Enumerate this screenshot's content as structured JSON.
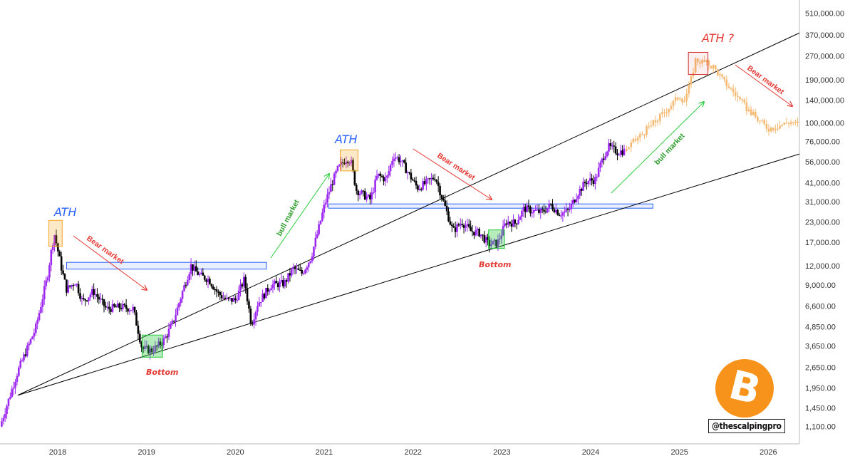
{
  "chart_data": {
    "type": "candlestick",
    "y_scale": "log",
    "ylim": [
      850,
      620000
    ],
    "y_ticks": [
      "510,000.00",
      "370,000.00",
      "270,000.00",
      "190,000.00",
      "140,000.00",
      "100,000.00",
      "76,000.00",
      "56,000.00",
      "41,000.00",
      "31,000.00",
      "23,000.00",
      "17,000.00",
      "12,000.00",
      "9,000.00",
      "6,600.00",
      "4,850.00",
      "3,650.00",
      "2,650.00",
      "1,950.00",
      "1,450.00",
      "1,100.00"
    ],
    "x_ticks": [
      "2018",
      "2019",
      "2020",
      "2021",
      "2022",
      "2023",
      "2024",
      "2025",
      "2026"
    ],
    "x_range": [
      2017.35,
      2026.35
    ],
    "colors": {
      "up": "#9c27f0",
      "down": "#000000",
      "projection": "#f5b971",
      "channel": "#000000",
      "zone": "#2962ff",
      "bottom_box": "#27c93f",
      "ath_box": "#f5a623",
      "ath_q_box": "#d32f2f"
    },
    "price_path": [
      [
        2017.35,
        1100
      ],
      [
        2017.55,
        2500
      ],
      [
        2017.75,
        4700
      ],
      [
        2017.88,
        10000
      ],
      [
        2017.96,
        19500
      ],
      [
        2018.05,
        11000
      ],
      [
        2018.1,
        8400
      ],
      [
        2018.2,
        9500
      ],
      [
        2018.28,
        7000
      ],
      [
        2018.4,
        8200
      ],
      [
        2018.55,
        6300
      ],
      [
        2018.7,
        6500
      ],
      [
        2018.85,
        6300
      ],
      [
        2018.95,
        3500
      ],
      [
        2019.05,
        3400
      ],
      [
        2019.12,
        3600
      ],
      [
        2019.2,
        4000
      ],
      [
        2019.3,
        5200
      ],
      [
        2019.4,
        8000
      ],
      [
        2019.5,
        12000
      ],
      [
        2019.55,
        11000
      ],
      [
        2019.62,
        10200
      ],
      [
        2019.7,
        9800
      ],
      [
        2019.8,
        8000
      ],
      [
        2019.9,
        7200
      ],
      [
        2020.0,
        7200
      ],
      [
        2020.1,
        9800
      ],
      [
        2020.18,
        5000
      ],
      [
        2020.25,
        6800
      ],
      [
        2020.4,
        9000
      ],
      [
        2020.55,
        9200
      ],
      [
        2020.65,
        11500
      ],
      [
        2020.75,
        10700
      ],
      [
        2020.85,
        13500
      ],
      [
        2020.92,
        19000
      ],
      [
        2021.0,
        29000
      ],
      [
        2021.08,
        40000
      ],
      [
        2021.15,
        50000
      ],
      [
        2021.25,
        59000
      ],
      [
        2021.3,
        57000
      ],
      [
        2021.36,
        37000
      ],
      [
        2021.45,
        34000
      ],
      [
        2021.52,
        32000
      ],
      [
        2021.6,
        46000
      ],
      [
        2021.7,
        43000
      ],
      [
        2021.78,
        62000
      ],
      [
        2021.86,
        57000
      ],
      [
        2021.95,
        47000
      ],
      [
        2022.05,
        38000
      ],
      [
        2022.15,
        41000
      ],
      [
        2022.25,
        45000
      ],
      [
        2022.35,
        30000
      ],
      [
        2022.45,
        20000
      ],
      [
        2022.55,
        23000
      ],
      [
        2022.65,
        20000
      ],
      [
        2022.75,
        19500
      ],
      [
        2022.85,
        16500
      ],
      [
        2022.95,
        16800
      ],
      [
        2023.05,
        23000
      ],
      [
        2023.15,
        22500
      ],
      [
        2023.25,
        28000
      ],
      [
        2023.35,
        27000
      ],
      [
        2023.45,
        26500
      ],
      [
        2023.55,
        29500
      ],
      [
        2023.65,
        26000
      ],
      [
        2023.75,
        27000
      ],
      [
        2023.85,
        35000
      ],
      [
        2023.95,
        42000
      ],
      [
        2024.05,
        43000
      ],
      [
        2024.15,
        62000
      ],
      [
        2024.2,
        70000
      ],
      [
        2024.3,
        65000
      ],
      [
        2024.38,
        66000
      ]
    ],
    "projection_path": [
      [
        2024.38,
        66000
      ],
      [
        2024.55,
        82000
      ],
      [
        2024.75,
        105000
      ],
      [
        2024.9,
        130000
      ],
      [
        2025.0,
        150000
      ],
      [
        2025.05,
        138000
      ],
      [
        2025.12,
        180000
      ],
      [
        2025.18,
        255000
      ],
      [
        2025.28,
        245000
      ],
      [
        2025.38,
        230000
      ],
      [
        2025.5,
        185000
      ],
      [
        2025.62,
        155000
      ],
      [
        2025.75,
        125000
      ],
      [
        2025.88,
        105000
      ],
      [
        2026.0,
        92000
      ],
      [
        2026.12,
        96000
      ],
      [
        2026.25,
        102000
      ],
      [
        2026.33,
        98000
      ]
    ],
    "channel_lines": [
      {
        "from": [
          2017.55,
          1750
        ],
        "to": [
          2026.35,
          380000
        ]
      },
      {
        "from": [
          2017.55,
          1750
        ],
        "to": [
          2026.35,
          63000
        ]
      }
    ],
    "resistance_zones": [
      {
        "x0": 2018.1,
        "x1": 2020.35,
        "y0": 11400,
        "y1": 12600
      },
      {
        "x0": 2021.05,
        "x1": 2024.7,
        "y0": 28300,
        "y1": 30000
      }
    ],
    "annotations": {
      "ath_left": {
        "label": "ATH",
        "x": 2017.96,
        "y": 19500
      },
      "ath_mid": {
        "label": "ATH",
        "x": 2021.28,
        "y": 59000
      },
      "ath_future": {
        "label": "ATH ?",
        "x": 2025.22,
        "y": 255000
      },
      "bottom_left": {
        "label": "Bottom",
        "x": 2019.05,
        "y": 3500
      },
      "bottom_right": {
        "label": "Bottom",
        "x": 2022.92,
        "y": 16800
      },
      "bear_1": {
        "label": "Bear market"
      },
      "bear_2": {
        "label": "Bear market"
      },
      "bear_3": {
        "label": "Bear market"
      },
      "bull_1": {
        "label": "bull market"
      },
      "bull_2": {
        "label": "bull market"
      }
    }
  },
  "logo_symbol": "B",
  "logo_icon": "bitcoin-icon",
  "handle": "@thescalpingpro"
}
